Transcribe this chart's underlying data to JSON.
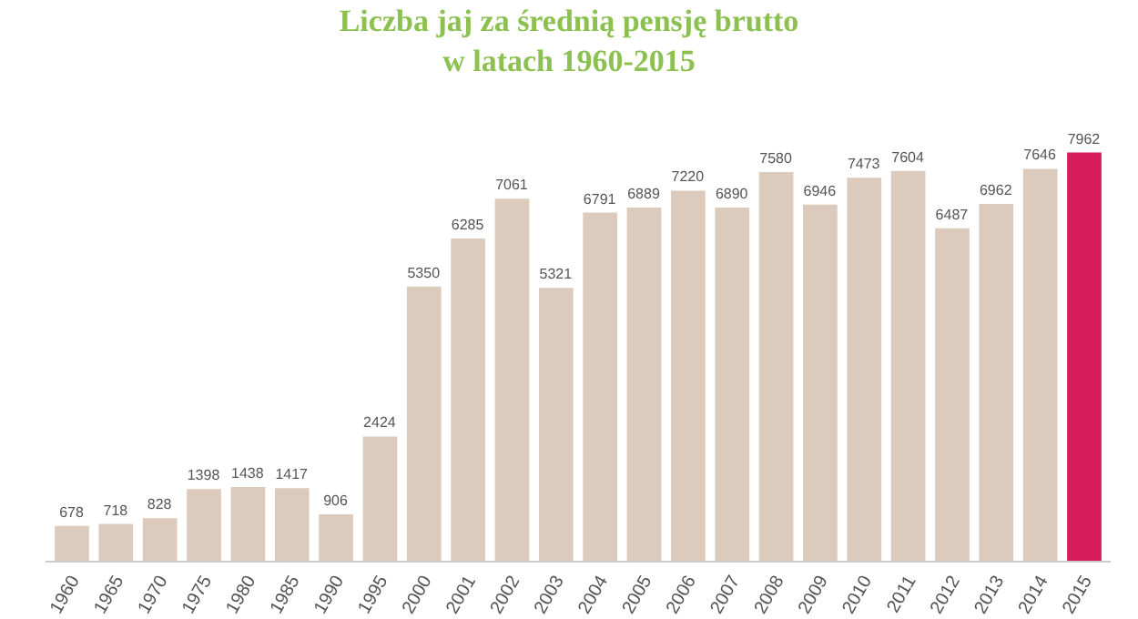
{
  "chart_data": {
    "type": "bar",
    "title": "Liczba jaj za średnią pensję brutto\nw latach 1960-2015",
    "categories": [
      "1960",
      "1965",
      "1970",
      "1975",
      "1980",
      "1985",
      "1990",
      "1995",
      "2000",
      "2001",
      "2002",
      "2003",
      "2004",
      "2005",
      "2006",
      "2007",
      "2008",
      "2009",
      "2010",
      "2011",
      "2012",
      "2013",
      "2014",
      "2015"
    ],
    "values": [
      678,
      718,
      828,
      1398,
      1438,
      1417,
      906,
      2424,
      5350,
      6285,
      7061,
      5321,
      6791,
      6889,
      7220,
      6890,
      7580,
      6946,
      7473,
      7604,
      6487,
      6962,
      7646,
      7962
    ],
    "colors": [
      "#dccbbd",
      "#dccbbd",
      "#dccbbd",
      "#dccbbd",
      "#dccbbd",
      "#dccbbd",
      "#dccbbd",
      "#dccbbd",
      "#dccbbd",
      "#dccbbd",
      "#dccbbd",
      "#dccbbd",
      "#dccbbd",
      "#dccbbd",
      "#dccbbd",
      "#dccbbd",
      "#dccbbd",
      "#dccbbd",
      "#dccbbd",
      "#dccbbd",
      "#dccbbd",
      "#dccbbd",
      "#dccbbd",
      "#d81b5a"
    ],
    "data_labels": true
  }
}
